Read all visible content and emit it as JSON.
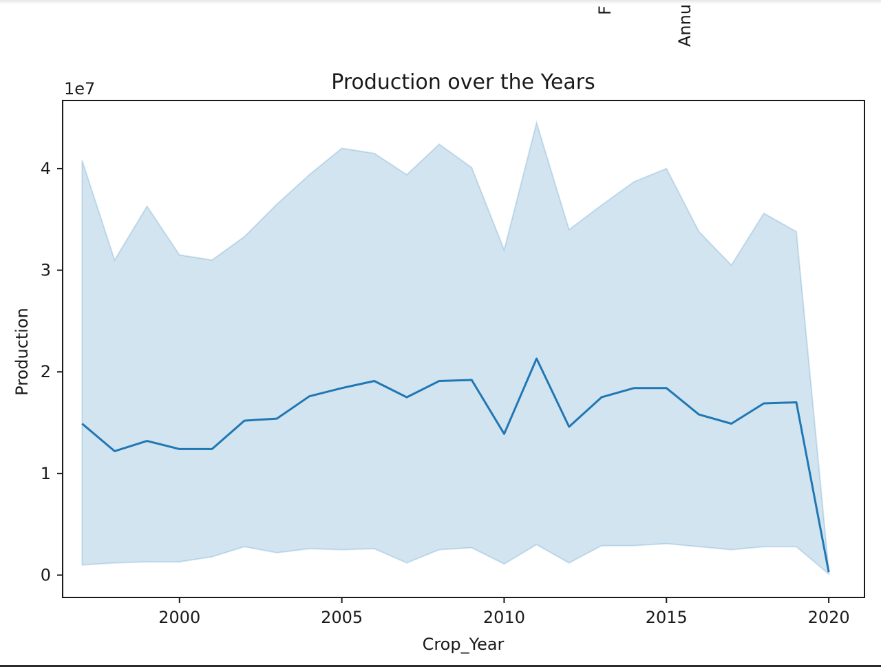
{
  "clipped_labels": [
    "F",
    "Annu"
  ],
  "chart_data": {
    "type": "line",
    "title": "Production over the Years",
    "xlabel": "Crop_Year",
    "ylabel": "Production",
    "offset_text": "1e7",
    "xlim": [
      1996.4,
      2021.1
    ],
    "ylim": [
      -0.22,
      4.67
    ],
    "x_ticks": [
      2000,
      2005,
      2010,
      2015,
      2020
    ],
    "x_tick_labels": [
      "2000",
      "2005",
      "2010",
      "2015",
      "2020"
    ],
    "y_ticks": [
      0,
      1,
      2,
      3,
      4
    ],
    "y_tick_labels": [
      "0",
      "1",
      "2",
      "3",
      "4"
    ],
    "grid": false,
    "line_color": "#1f77b4",
    "band_color": "#1f77b4",
    "x": [
      1997,
      1998,
      1999,
      2000,
      2001,
      2002,
      2003,
      2004,
      2005,
      2006,
      2007,
      2008,
      2009,
      2010,
      2011,
      2012,
      2013,
      2014,
      2015,
      2016,
      2017,
      2018,
      2019,
      2020
    ],
    "series": [
      {
        "values": [
          1.49,
          1.22,
          1.32,
          1.24,
          1.24,
          1.52,
          1.54,
          1.76,
          1.84,
          1.91,
          1.75,
          1.91,
          1.92,
          1.39,
          2.13,
          1.46,
          1.75,
          1.84,
          1.84,
          1.58,
          1.49,
          1.69,
          1.7,
          0.03
        ]
      }
    ],
    "ci_lower": [
      0.1,
      0.12,
      0.13,
      0.13,
      0.18,
      0.28,
      0.22,
      0.26,
      0.25,
      0.26,
      0.12,
      0.25,
      0.27,
      0.11,
      0.3,
      0.12,
      0.29,
      0.29,
      0.31,
      0.28,
      0.25,
      0.28,
      0.28,
      0.01
    ],
    "ci_upper": [
      4.08,
      3.1,
      3.63,
      3.15,
      3.1,
      3.33,
      3.65,
      3.94,
      4.2,
      4.15,
      3.94,
      4.24,
      4.01,
      3.2,
      4.45,
      3.4,
      3.64,
      3.87,
      4.0,
      3.38,
      3.05,
      3.56,
      3.38,
      0.05
    ]
  }
}
